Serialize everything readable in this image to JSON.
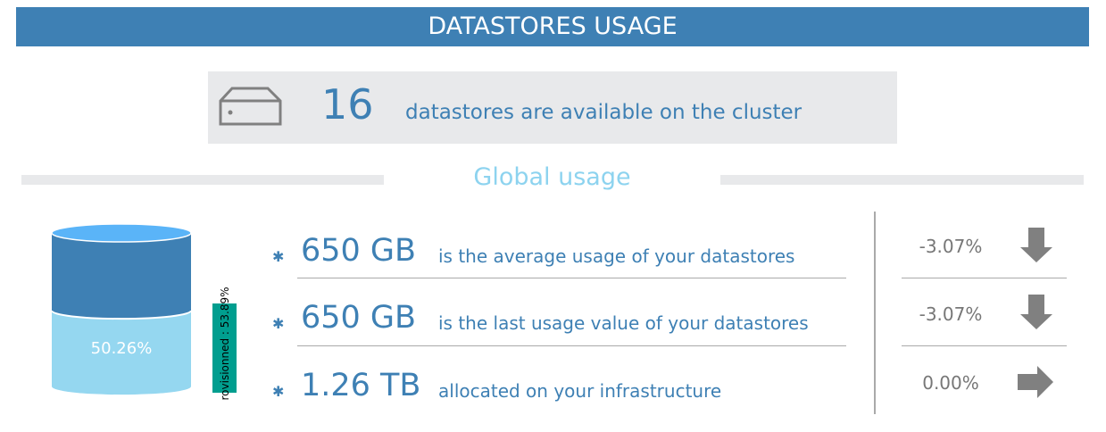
{
  "header": {
    "title": "DATASTORES USAGE"
  },
  "summary": {
    "icon": "hard-drive-icon",
    "count": "16",
    "text": "datastores are available on the cluster"
  },
  "section": {
    "title": "Global usage"
  },
  "cylinder": {
    "used_percent_label": "50.26%",
    "used_percent": 50.26,
    "colors": {
      "top": "#5ab4f8",
      "free": "#3e80b4",
      "used": "#95d7f0"
    }
  },
  "provisioned": {
    "label": "rovisionned : 53.89%",
    "color": "#009e8f"
  },
  "stats": [
    {
      "value": "650 GB",
      "text": "is the average usage of your datastores",
      "change": "-3.07%",
      "trend_icon": "arrow-down-icon"
    },
    {
      "value": "650 GB",
      "text": "is the last usage value of your datastores",
      "change": "-3.07%",
      "trend_icon": "arrow-down-icon"
    },
    {
      "value": "1.26 TB",
      "text": "allocated on your infrastructure",
      "change": "0.00%",
      "trend_icon": "arrow-right-icon"
    }
  ]
}
